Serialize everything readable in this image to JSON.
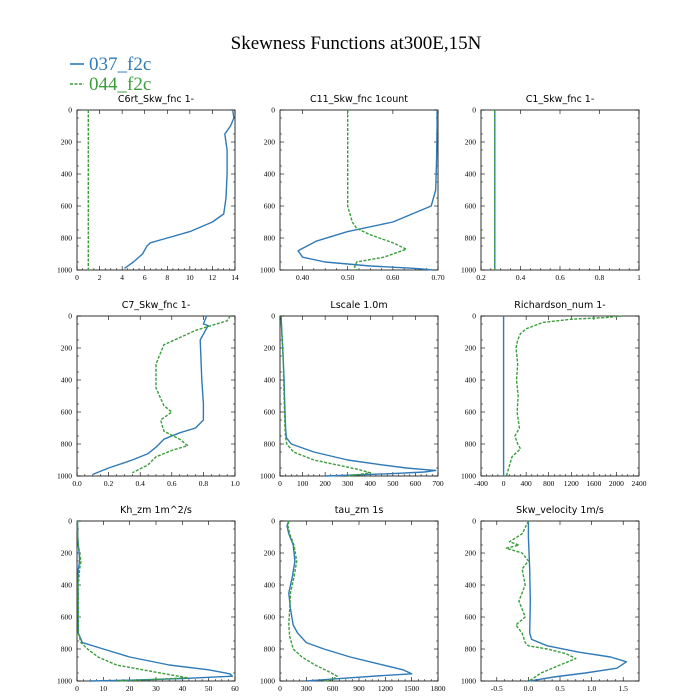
{
  "figure": {
    "title": "Skewness Functions at300E,15N",
    "colors": {
      "037_f2c": "#2f7ab8",
      "044_f2c": "#3a9e3a"
    }
  },
  "legend": {
    "items": [
      {
        "label": "037_f2c",
        "color": "#2f7ab8",
        "dashed": false
      },
      {
        "label": "044_f2c",
        "color": "#3a9e3a",
        "dashed": true
      }
    ]
  },
  "chart_data": [
    {
      "type": "line",
      "title": "C6rt_Skw_fnc 1-",
      "xlim": [
        0,
        14
      ],
      "ylim": [
        0,
        1000
      ],
      "xticks": [
        0,
        2,
        4,
        6,
        8,
        10,
        12,
        14
      ],
      "yticks": [
        0,
        200,
        400,
        600,
        800,
        1000
      ],
      "series": [
        {
          "name": "037_f2c",
          "x": [
            13.8,
            13.9,
            13.6,
            13.1,
            13.3,
            13.3,
            13.2,
            13.0,
            12.0,
            10.0,
            8.0,
            6.5,
            6.2,
            5.8,
            5.0,
            4.2
          ],
          "y": [
            0,
            50,
            100,
            150,
            250,
            400,
            550,
            650,
            700,
            760,
            800,
            830,
            850,
            900,
            950,
            990
          ]
        },
        {
          "name": "044_f2c",
          "x": [
            1.0,
            1.0
          ],
          "y": [
            0,
            1000
          ]
        }
      ]
    },
    {
      "type": "line",
      "title": "C11_Skw_fnc 1count",
      "xlim": [
        0.35,
        0.7
      ],
      "ylim": [
        0,
        1000
      ],
      "xticks": [
        0.4,
        0.5,
        0.6,
        0.7
      ],
      "xtick_labels": [
        "0.40",
        "0.50",
        "0.60",
        "0.70"
      ],
      "yticks": [
        0,
        200,
        400,
        600,
        800,
        1000
      ],
      "series": [
        {
          "name": "037_f2c",
          "x": [
            0.698,
            0.698,
            0.697,
            0.695,
            0.685,
            0.6,
            0.5,
            0.43,
            0.39,
            0.4,
            0.45,
            0.55,
            0.65,
            0.69
          ],
          "y": [
            0,
            100,
            300,
            500,
            600,
            700,
            760,
            820,
            880,
            920,
            950,
            975,
            990,
            1000
          ]
        },
        {
          "name": "044_f2c",
          "x": [
            0.5,
            0.5,
            0.5,
            0.5,
            0.51,
            0.52,
            0.55,
            0.6,
            0.63,
            0.58,
            0.52,
            0.515,
            0.52
          ],
          "y": [
            0,
            100,
            300,
            600,
            700,
            740,
            780,
            830,
            870,
            920,
            950,
            980,
            1000
          ]
        }
      ]
    },
    {
      "type": "line",
      "title": "C1_Skw_fnc 1-",
      "xlim": [
        0.2,
        1.0
      ],
      "ylim": [
        0,
        1000
      ],
      "xticks": [
        0.2,
        0.4,
        0.6,
        0.8,
        1.0
      ],
      "yticks": [
        0,
        200,
        400,
        600,
        800,
        1000
      ],
      "series": [
        {
          "name": "037_f2c",
          "x": [
            0.27,
            0.27
          ],
          "y": [
            0,
            1000
          ]
        },
        {
          "name": "044_f2c",
          "x": [
            0.27,
            0.27
          ],
          "y": [
            0,
            1000
          ]
        }
      ]
    },
    {
      "type": "line",
      "title": "C7_Skw_fnc 1-",
      "xlim": [
        0.0,
        1.0
      ],
      "ylim": [
        0,
        1000
      ],
      "xticks": [
        0,
        0.2,
        0.4,
        0.6,
        0.8,
        1.0
      ],
      "xtick_labels": [
        "0.0",
        "0.2",
        "0.4",
        "0.6",
        "0.8",
        "1.0"
      ],
      "yticks": [
        0,
        200,
        400,
        600,
        800,
        1000
      ],
      "series": [
        {
          "name": "037_f2c",
          "x": [
            0.82,
            0.8,
            0.83,
            0.78,
            0.79,
            0.8,
            0.8,
            0.75,
            0.65,
            0.55,
            0.5,
            0.45,
            0.35,
            0.2,
            0.1
          ],
          "y": [
            0,
            50,
            60,
            150,
            400,
            550,
            650,
            700,
            730,
            770,
            820,
            860,
            900,
            950,
            990
          ]
        },
        {
          "name": "044_f2c",
          "x": [
            0.97,
            0.95,
            0.75,
            0.55,
            0.5,
            0.5,
            0.55,
            0.6,
            0.53,
            0.55,
            0.65,
            0.7,
            0.6,
            0.5,
            0.45,
            0.35
          ],
          "y": [
            0,
            30,
            90,
            180,
            300,
            450,
            560,
            600,
            650,
            720,
            770,
            810,
            840,
            880,
            930,
            980
          ]
        }
      ]
    },
    {
      "type": "line",
      "title": "Lscale 1.0m",
      "xlim": [
        0,
        700
      ],
      "ylim": [
        0,
        1000
      ],
      "xticks": [
        0,
        100,
        200,
        300,
        400,
        500,
        600,
        700
      ],
      "yticks": [
        0,
        200,
        400,
        600,
        800,
        1000
      ],
      "series": [
        {
          "name": "037_f2c",
          "x": [
            5,
            8,
            12,
            15,
            18,
            20,
            22,
            25,
            28,
            50,
            150,
            300,
            450,
            560,
            640,
            690,
            640,
            500,
            300,
            200
          ],
          "y": [
            0,
            100,
            200,
            300,
            400,
            500,
            600,
            700,
            760,
            800,
            850,
            900,
            930,
            950,
            960,
            965,
            975,
            985,
            995,
            1000
          ]
        },
        {
          "name": "044_f2c",
          "x": [
            5,
            8,
            12,
            15,
            16,
            18,
            20,
            22,
            25,
            30,
            60,
            150,
            250,
            350,
            400,
            350,
            300
          ],
          "y": [
            0,
            100,
            200,
            300,
            400,
            500,
            600,
            700,
            760,
            800,
            850,
            900,
            930,
            960,
            980,
            990,
            1000
          ]
        }
      ]
    },
    {
      "type": "line",
      "title": "Richardson_num 1-",
      "xlim": [
        -400,
        2400
      ],
      "ylim": [
        0,
        1000
      ],
      "xticks": [
        -400,
        0,
        400,
        800,
        1200,
        1600,
        2000,
        2400
      ],
      "yticks": [
        0,
        200,
        400,
        600,
        800,
        1000
      ],
      "series": [
        {
          "name": "037_f2c",
          "x": [
            0,
            0
          ],
          "y": [
            0,
            1000
          ]
        },
        {
          "name": "044_f2c",
          "x": [
            2100,
            1800,
            1200,
            700,
            400,
            300,
            250,
            220,
            250,
            230,
            260,
            240,
            280,
            200,
            250,
            300,
            150,
            100,
            50
          ],
          "y": [
            0,
            10,
            20,
            40,
            80,
            110,
            150,
            200,
            300,
            400,
            500,
            600,
            700,
            750,
            800,
            830,
            880,
            940,
            1000
          ]
        }
      ]
    },
    {
      "type": "line",
      "title": "Kh_zm 1m^2/s",
      "xlim": [
        0,
        60
      ],
      "ylim": [
        0,
        1000
      ],
      "xticks": [
        0,
        10,
        20,
        30,
        40,
        50,
        60
      ],
      "yticks": [
        0,
        200,
        400,
        600,
        800,
        1000
      ],
      "series": [
        {
          "name": "037_f2c",
          "x": [
            0.2,
            0.3,
            0.5,
            0.8,
            1.0,
            0.5,
            0.3,
            0.5,
            2,
            10,
            20,
            35,
            50,
            58,
            59,
            40,
            20,
            5
          ],
          "y": [
            0,
            100,
            150,
            200,
            250,
            300,
            400,
            700,
            760,
            800,
            850,
            900,
            930,
            955,
            970,
            985,
            995,
            1000
          ]
        },
        {
          "name": "044_f2c",
          "x": [
            0.2,
            0.3,
            0.5,
            1.0,
            1.5,
            1.0,
            0.5,
            0.5,
            1.5,
            4,
            8,
            15,
            25,
            35,
            42,
            30,
            15
          ],
          "y": [
            0,
            100,
            150,
            200,
            250,
            300,
            400,
            700,
            760,
            800,
            850,
            900,
            930,
            960,
            980,
            990,
            1000
          ]
        }
      ]
    },
    {
      "type": "line",
      "title": "tau_zm 1s",
      "xlim": [
        0,
        1800
      ],
      "ylim": [
        0,
        1000
      ],
      "xticks": [
        0,
        300,
        600,
        900,
        1200,
        1500,
        1800
      ],
      "yticks": [
        0,
        200,
        400,
        600,
        800,
        1000
      ],
      "series": [
        {
          "name": "037_f2c",
          "x": [
            100,
            80,
            100,
            150,
            170,
            140,
            100,
            120,
            150,
            200,
            300,
            500,
            800,
            1100,
            1400,
            1500,
            1200,
            800,
            500,
            300
          ],
          "y": [
            0,
            30,
            80,
            150,
            250,
            350,
            450,
            550,
            650,
            700,
            760,
            800,
            850,
            890,
            930,
            955,
            965,
            980,
            992,
            1000
          ]
        },
        {
          "name": "044_f2c",
          "x": [
            100,
            90,
            110,
            160,
            190,
            160,
            120,
            110,
            100,
            110,
            150,
            250,
            400,
            550,
            650,
            600,
            500
          ],
          "y": [
            0,
            30,
            80,
            150,
            250,
            350,
            450,
            550,
            650,
            720,
            800,
            850,
            900,
            940,
            970,
            990,
            1000
          ]
        }
      ]
    },
    {
      "type": "line",
      "title": "Skw_velocity 1m/s",
      "xlim": [
        -0.75,
        1.75
      ],
      "ylim": [
        0,
        1000
      ],
      "xticks": [
        -0.5,
        0.0,
        0.5,
        1.0,
        1.5
      ],
      "xtick_labels": [
        "-0.5",
        "0.0",
        "0.5",
        "1.0",
        "1.5"
      ],
      "yticks": [
        0,
        200,
        400,
        600,
        800,
        1000
      ],
      "series": [
        {
          "name": "037_f2c",
          "x": [
            0.0,
            0.0,
            0.02,
            0.03,
            0.02,
            0.05,
            0.3,
            0.8,
            1.3,
            1.55,
            1.4,
            0.9,
            0.4,
            0.1,
            0.0
          ],
          "y": [
            0,
            100,
            300,
            500,
            700,
            740,
            780,
            820,
            850,
            880,
            920,
            950,
            975,
            995,
            1000
          ]
        },
        {
          "name": "044_f2c",
          "x": [
            0.0,
            -0.1,
            -0.3,
            -0.15,
            -0.35,
            -0.1,
            0.0,
            -0.1,
            -0.05,
            -0.15,
            -0.05,
            -0.2,
            -0.1,
            -0.05,
            0.0,
            0.3,
            0.6,
            0.75,
            0.5,
            0.2,
            0.05,
            0.0
          ],
          "y": [
            0,
            80,
            130,
            150,
            170,
            200,
            250,
            300,
            400,
            500,
            600,
            650,
            700,
            760,
            780,
            800,
            830,
            860,
            900,
            950,
            990,
            1000
          ]
        }
      ]
    }
  ]
}
